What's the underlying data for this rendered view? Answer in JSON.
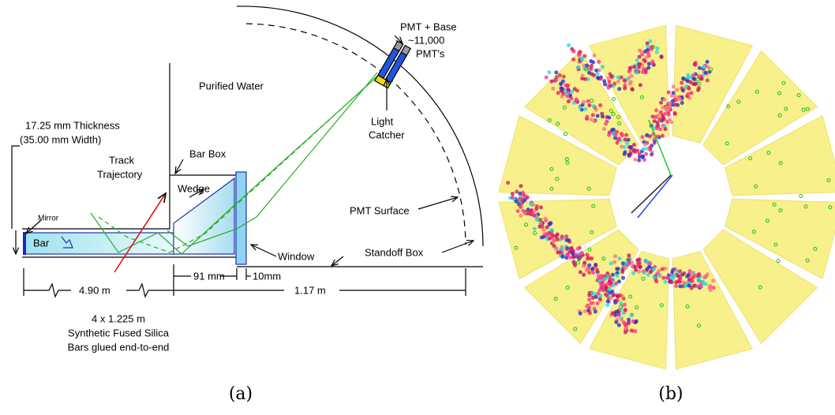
{
  "panel_a": {
    "pmt_base": "PMT + Base",
    "pmt_count": "~11,000",
    "pmts": "PMT's",
    "water": "Purified Water",
    "thickness": "17.25 mm Thickness",
    "width": "(35.00 mm Width)",
    "track1": "Track",
    "track2": "Trajectory",
    "bar_box": "Bar Box",
    "wedge": "Wedge",
    "light1": "Light",
    "light2": "Catcher",
    "mirror": "Mirror",
    "bar": "Bar",
    "pmt_surface": "PMT Surface",
    "window": "Window",
    "standoff": "Standoff Box",
    "dim_bar": "4.90 m",
    "dim_wedge": "91 mm",
    "dim_window": "10mm",
    "dim_standoff": "1.17 m",
    "note1": "4 x 1.225 m",
    "note2": "Synthetic Fused Silica",
    "note3": "Bars glued end-to-end",
    "caption": "(a)"
  },
  "panel_b": {
    "caption": "(b)"
  }
}
